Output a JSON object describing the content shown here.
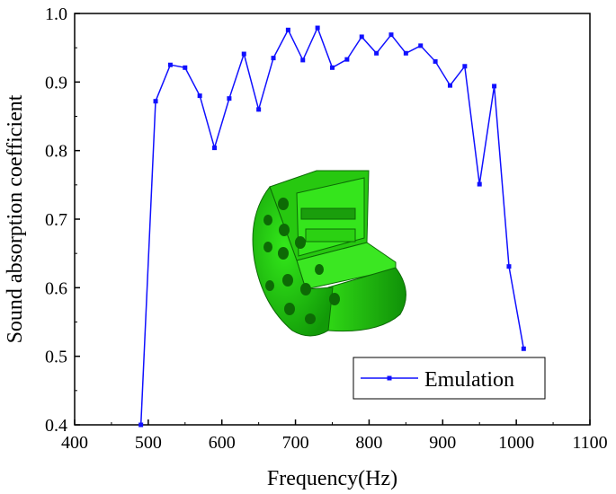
{
  "chart_data": {
    "type": "line",
    "title": "",
    "xlabel": "Frequency(Hz)",
    "ylabel": "Sound absorption coefficient",
    "xlim": [
      400,
      1100
    ],
    "ylim": [
      0.4,
      1.0
    ],
    "x_ticks": [
      "400",
      "500",
      "600",
      "700",
      "800",
      "900",
      "1000",
      "1100"
    ],
    "y_ticks": [
      "0.4",
      "0.5",
      "0.6",
      "0.7",
      "0.8",
      "0.9",
      "1.0"
    ],
    "grid": false,
    "legend_position": "bottom-right",
    "series": [
      {
        "name": "Emulation",
        "color": "#1010ff",
        "marker": "square",
        "x": [
          490,
          510,
          530,
          550,
          570,
          590,
          610,
          630,
          650,
          670,
          690,
          710,
          730,
          750,
          770,
          790,
          810,
          830,
          850,
          870,
          890,
          910,
          930,
          950,
          970,
          990,
          1010
        ],
        "y": [
          0.4,
          0.872,
          0.925,
          0.921,
          0.88,
          0.804,
          0.876,
          0.941,
          0.86,
          0.935,
          0.976,
          0.932,
          0.979,
          0.921,
          0.933,
          0.966,
          0.942,
          0.969,
          0.942,
          0.953,
          0.93,
          0.895,
          0.923,
          0.751,
          0.894,
          0.631,
          0.511
        ]
      }
    ],
    "inset_image": "perforated-resonator-model",
    "inset_color": "#22dd11"
  }
}
